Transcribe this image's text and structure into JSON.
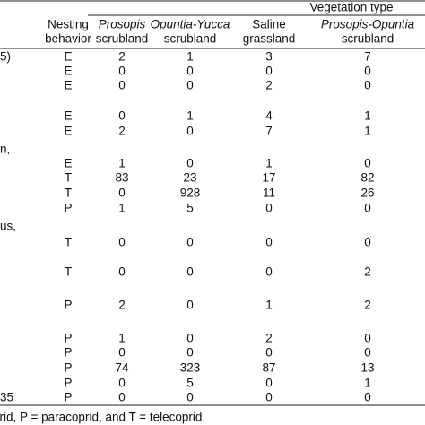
{
  "header": {
    "group_title": "Vegetation type",
    "behavior_title": [
      "Nesting",
      "behavior"
    ],
    "columns": [
      {
        "lines": [
          "Prosopis",
          "scrubland"
        ],
        "italic": true
      },
      {
        "lines": [
          "Opuntia-Yucca",
          "scrubland"
        ],
        "italic": true
      },
      {
        "lines": [
          "Saline",
          "grassland"
        ],
        "italic": false
      },
      {
        "lines": [
          "Prosopis-Opuntia",
          "scrubland"
        ],
        "italic": true
      }
    ]
  },
  "table": {
    "rows": [
      {
        "label": "5)",
        "behavior": "E",
        "cells": [
          2,
          1,
          3,
          7
        ]
      },
      {
        "behavior": "E",
        "cells": [
          0,
          0,
          0,
          0
        ]
      },
      {
        "behavior": "E",
        "cells": [
          0,
          0,
          2,
          0
        ]
      },
      {
        "behavior": "E",
        "cells": [
          0,
          1,
          4,
          1
        ]
      },
      {
        "behavior": "E",
        "cells": [
          2,
          0,
          7,
          1
        ]
      },
      {
        "label": "n,"
      },
      {
        "behavior": "E",
        "cells": [
          1,
          0,
          1,
          0
        ]
      },
      {
        "behavior": "T",
        "cells": [
          83,
          23,
          17,
          82
        ]
      },
      {
        "behavior": "T",
        "cells": [
          0,
          928,
          11,
          26
        ]
      },
      {
        "behavior": "P",
        "cells": [
          1,
          5,
          0,
          0
        ]
      },
      {
        "label": "us,"
      },
      {
        "behavior": "T",
        "cells": [
          0,
          0,
          0,
          0
        ]
      },
      {
        "behavior": "T",
        "cells": [
          0,
          0,
          0,
          2
        ]
      },
      {
        "behavior": "P",
        "cells": [
          2,
          0,
          1,
          2
        ]
      },
      {
        "behavior": "P",
        "cells": [
          1,
          0,
          2,
          0
        ]
      },
      {
        "behavior": "P",
        "cells": [
          0,
          0,
          0,
          0
        ]
      },
      {
        "behavior": "P",
        "cells": [
          74,
          323,
          87,
          13
        ]
      },
      {
        "behavior": "P",
        "cells": [
          0,
          5,
          0,
          1
        ]
      },
      {
        "label": "35",
        "behavior": "P",
        "cells": [
          0,
          0,
          0,
          0
        ]
      }
    ]
  },
  "footnote": "prid, P = paracoprid, and T = telecoprid."
}
